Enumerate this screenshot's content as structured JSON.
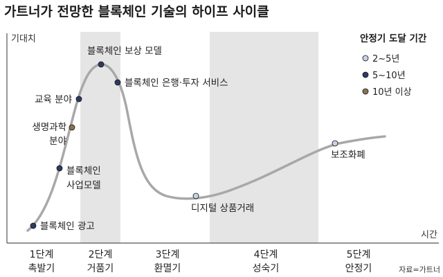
{
  "title": "가트너가 전망한 블록체인 기술의 하이프 사이클",
  "source": "자료=가트너",
  "chart_data": {
    "type": "scatter",
    "title": "가트너가 전망한 블록체인 기술의 하이프 사이클",
    "xlabel": "시간",
    "ylabel": "기대치",
    "stages": [
      {
        "name": "1단계",
        "label": "촉발기",
        "shaded": false
      },
      {
        "name": "2단계",
        "label": "거품기",
        "shaded": true
      },
      {
        "name": "3단계",
        "label": "환멸기",
        "shaded": false
      },
      {
        "name": "4단계",
        "label": "성숙기",
        "shaded": true
      },
      {
        "name": "5단계",
        "label": "안정기",
        "shaded": false
      }
    ],
    "legend": {
      "title": "안정기 도달 기간",
      "position": "top-right",
      "items": [
        {
          "label": "2~5년",
          "color": "#c8d3e6"
        },
        {
          "label": "5~10년",
          "color": "#2e3a66"
        },
        {
          "label": "10년 이상",
          "color": "#8a7355"
        }
      ]
    },
    "points": [
      {
        "label": "블록체인 광고",
        "stage": "1단계",
        "timeframe": "5~10년"
      },
      {
        "label": "블록체인 사업모델",
        "stage": "1단계",
        "timeframe": "5~10년"
      },
      {
        "label": "생명과학 분야",
        "stage": "1단계",
        "timeframe": "10년 이상"
      },
      {
        "label": "교육 분야",
        "stage": "1단계",
        "timeframe": "5~10년"
      },
      {
        "label": "블록체인 보상 모델",
        "stage": "2단계",
        "timeframe": "5~10년"
      },
      {
        "label": "블록체인 은행·투자 서비스",
        "stage": "2단계",
        "timeframe": "5~10년"
      },
      {
        "label": "디지털 상품거래",
        "stage": "3단계",
        "timeframe": "2~5년"
      },
      {
        "label": "보조화폐",
        "stage": "5단계",
        "timeframe": "2~5년"
      }
    ],
    "grid": false
  }
}
